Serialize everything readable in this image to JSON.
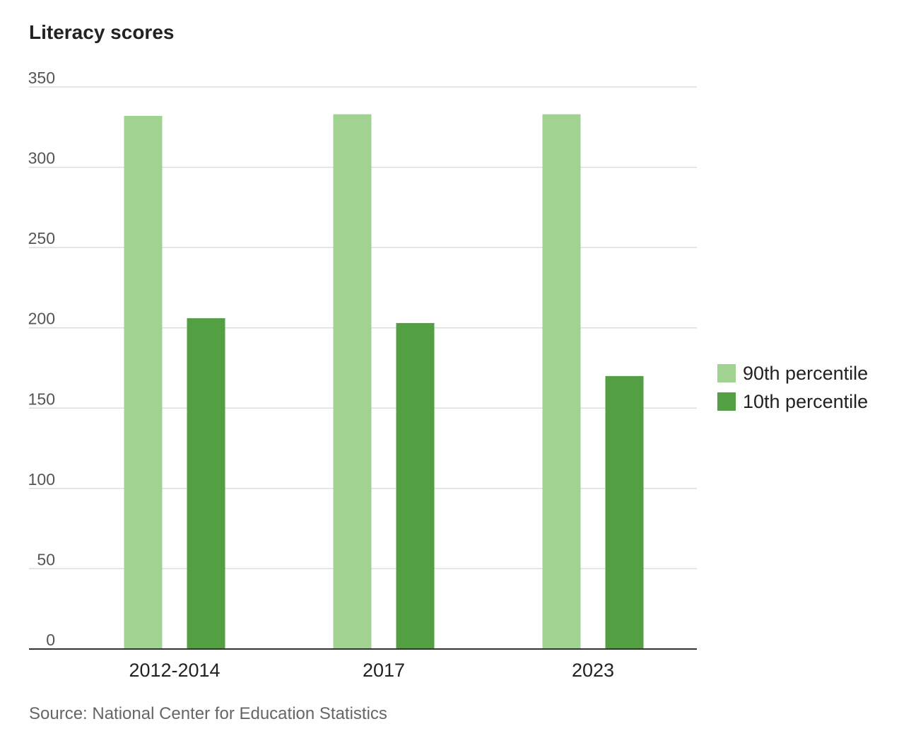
{
  "chart_data": {
    "type": "bar",
    "title": "Literacy scores",
    "xlabel": "",
    "ylabel": "",
    "categories": [
      "2012-2014",
      "2017",
      "2023"
    ],
    "series": [
      {
        "name": "90th percentile",
        "color": "#a2d291",
        "values": [
          332,
          333,
          333
        ]
      },
      {
        "name": "10th percentile",
        "color": "#539f44",
        "values": [
          206,
          203,
          170
        ]
      }
    ],
    "ylim": [
      0,
      350
    ],
    "yticks": [
      0,
      50,
      100,
      150,
      200,
      250,
      300,
      350
    ],
    "grid": true,
    "legend_position": "right",
    "source": "Source: National Center for Education Statistics"
  }
}
